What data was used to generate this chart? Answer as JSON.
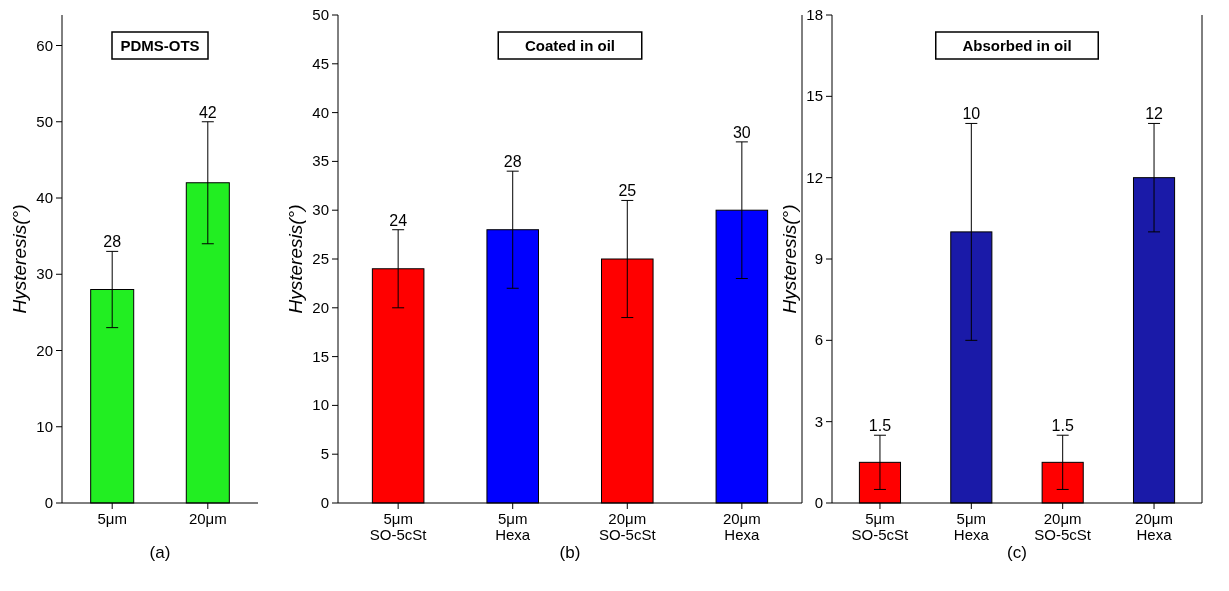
{
  "chart_data": [
    {
      "type": "bar",
      "title": "PDMS-OTS",
      "ylabel": "Hysteresis(°)",
      "xlabel": "(a)",
      "categories": [
        "5μm",
        "20μm"
      ],
      "values": [
        28,
        42
      ],
      "colors": [
        "#22ee22",
        "#22ee22"
      ],
      "errors": [
        5,
        8
      ],
      "annotations": [
        {
          "text": "28",
          "x": "5μm",
          "y": 33
        },
        {
          "text": "42",
          "x": "20μm",
          "y": 50
        }
      ],
      "ylim": [
        0,
        64
      ],
      "yticks": [
        0,
        10,
        20,
        30,
        40,
        50,
        60
      ],
      "grid": false
    },
    {
      "type": "bar",
      "title": "Coated in oil",
      "ylabel": "Hysteresis(°)",
      "xlabel": "(b)",
      "categories": [
        "5μm\nSO-5cSt",
        "5μm\nHexa",
        "20μm\nSO-5cSt",
        "20μm\nHexa"
      ],
      "values": [
        24,
        28,
        25,
        30
      ],
      "colors": [
        "#ff0000",
        "#0000ff",
        "#ff0000",
        "#0000ff"
      ],
      "errors": [
        4,
        6,
        6,
        7
      ],
      "annotations": [
        {
          "text": "24",
          "x": "5μm\nSO-5cSt",
          "y": 28
        },
        {
          "text": "28",
          "x": "5μm\nHexa",
          "y": 34
        },
        {
          "text": "25",
          "x": "20μm\nSO-5cSt",
          "y": 31
        },
        {
          "text": "30",
          "x": "20μm\nHexa",
          "y": 37
        }
      ],
      "ylim": [
        0,
        50
      ],
      "yticks": [
        0,
        5,
        10,
        15,
        20,
        25,
        30,
        35,
        40,
        45,
        50
      ],
      "grid": false
    },
    {
      "type": "bar",
      "title": "Absorbed in oil",
      "ylabel": "Hysteresis(°)",
      "xlabel": "(c)",
      "categories": [
        "5μm\nSO-5cSt",
        "5μm\nHexa",
        "20μm\nSO-5cSt",
        "20μm\nHexa"
      ],
      "values": [
        1.5,
        10,
        1.5,
        12
      ],
      "colors": [
        "#ff0000",
        "#1a1aa8",
        "#ff0000",
        "#1a1aa8"
      ],
      "errors": [
        1,
        4,
        1,
        2
      ],
      "annotations": [
        {
          "text": "1.5",
          "x": "5μm\nSO-5cSt",
          "y": 2.5
        },
        {
          "text": "10",
          "x": "5μm\nHexa",
          "y": 14
        },
        {
          "text": "1.5",
          "x": "20μm\nSO-5cSt",
          "y": 2.5
        },
        {
          "text": "12",
          "x": "20μm\nHexa",
          "y": 14
        }
      ],
      "ylim": [
        0,
        18
      ],
      "yticks": [
        0,
        3,
        6,
        9,
        12,
        15,
        18
      ],
      "grid": false
    }
  ]
}
